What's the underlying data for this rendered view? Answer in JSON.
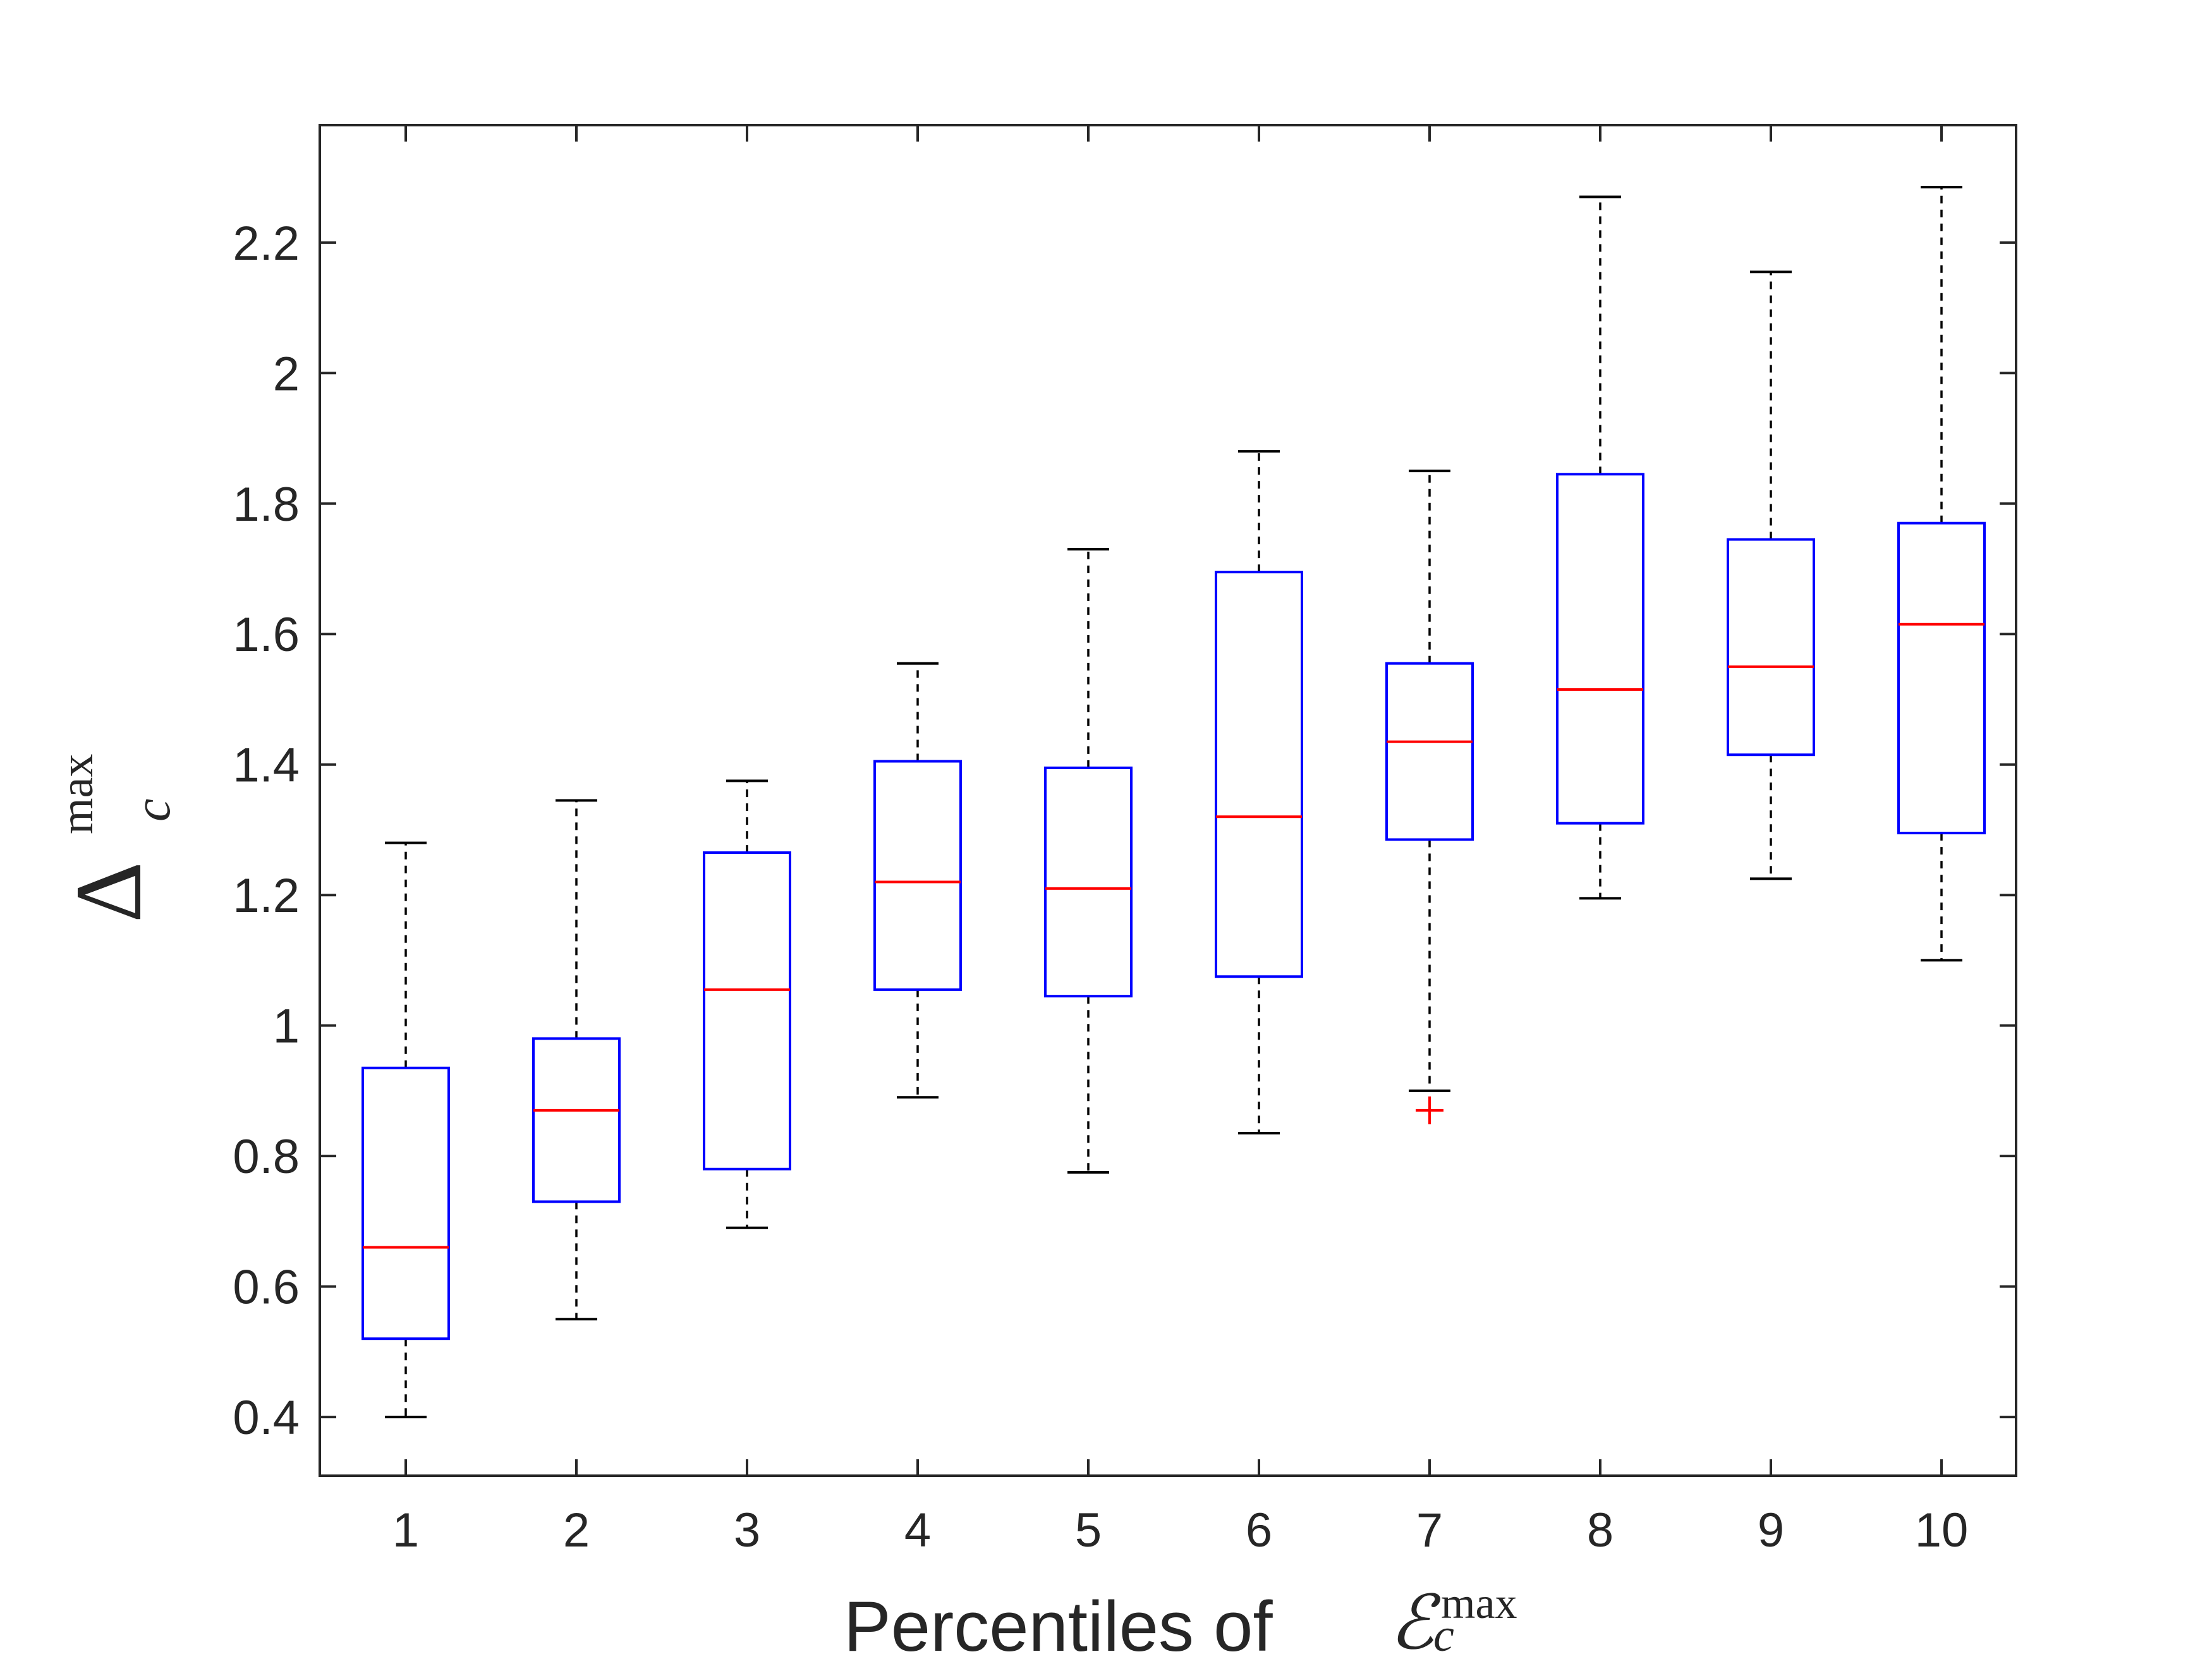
{
  "chart_data": {
    "type": "boxplot",
    "title": "",
    "xlabel": {
      "text": "Percentiles of",
      "math_symbol": "ℰ",
      "math_subscript": "c",
      "math_superscript": "max"
    },
    "ylabel": {
      "math_symbol": "Δ",
      "math_subscript": "c",
      "math_superscript": "max"
    },
    "categories": [
      "1",
      "2",
      "3",
      "4",
      "5",
      "6",
      "7",
      "8",
      "9",
      "10"
    ],
    "ylim": [
      0.31,
      2.38
    ],
    "yticks": [
      0.4,
      0.6,
      0.8,
      1,
      1.2,
      1.4,
      1.6,
      1.8,
      2,
      2.2
    ],
    "ytick_labels": [
      "0.4",
      "0.6",
      "0.8",
      "1",
      "1.2",
      "1.4",
      "1.6",
      "1.8",
      "2",
      "2.2"
    ],
    "grid": false,
    "colors": {
      "box": "#0000ff",
      "median": "#ff0000",
      "whisker": "#000000",
      "outlier": "#ff0000",
      "axes": "#262626"
    },
    "boxes": [
      {
        "category": "1",
        "whisker_low": 0.4,
        "q1": 0.52,
        "median": 0.66,
        "q3": 0.935,
        "whisker_high": 1.28,
        "outliers": []
      },
      {
        "category": "2",
        "whisker_low": 0.55,
        "q1": 0.73,
        "median": 0.87,
        "q3": 0.98,
        "whisker_high": 1.345,
        "outliers": []
      },
      {
        "category": "3",
        "whisker_low": 0.69,
        "q1": 0.78,
        "median": 1.055,
        "q3": 1.265,
        "whisker_high": 1.375,
        "outliers": []
      },
      {
        "category": "4",
        "whisker_low": 0.89,
        "q1": 1.055,
        "median": 1.22,
        "q3": 1.405,
        "whisker_high": 1.555,
        "outliers": []
      },
      {
        "category": "5",
        "whisker_low": 0.775,
        "q1": 1.045,
        "median": 1.21,
        "q3": 1.395,
        "whisker_high": 1.73,
        "outliers": []
      },
      {
        "category": "6",
        "whisker_low": 0.835,
        "q1": 1.075,
        "median": 1.32,
        "q3": 1.695,
        "whisker_high": 1.88,
        "outliers": []
      },
      {
        "category": "7",
        "whisker_low": 0.9,
        "q1": 1.285,
        "median": 1.435,
        "q3": 1.555,
        "whisker_high": 1.85,
        "outliers": [
          0.87
        ]
      },
      {
        "category": "8",
        "whisker_low": 1.195,
        "q1": 1.31,
        "median": 1.515,
        "q3": 1.845,
        "whisker_high": 2.27,
        "outliers": []
      },
      {
        "category": "9",
        "whisker_low": 1.225,
        "q1": 1.415,
        "median": 1.55,
        "q3": 1.745,
        "whisker_high": 2.155,
        "outliers": []
      },
      {
        "category": "10",
        "whisker_low": 1.1,
        "q1": 1.295,
        "median": 1.615,
        "q3": 1.77,
        "whisker_high": 2.285,
        "outliers": []
      }
    ]
  }
}
